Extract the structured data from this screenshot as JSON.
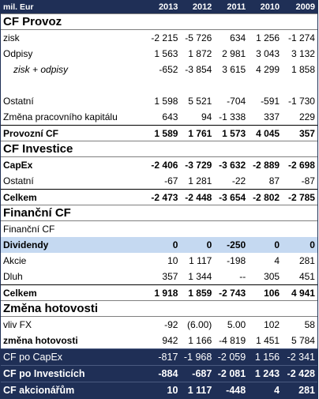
{
  "header": {
    "label": "mil. Eur",
    "years": [
      "2013",
      "2012",
      "2011",
      "2010",
      "2009"
    ]
  },
  "sections": [
    {
      "title": "CF Provoz",
      "rows": [
        {
          "label": "zisk",
          "values": [
            "-2 215",
            "-5 726",
            "634",
            "1 256",
            "-1 274"
          ],
          "style": "normal"
        },
        {
          "label": "Odpisy",
          "values": [
            "1 563",
            "1 872",
            "2 981",
            "3 043",
            "3 132"
          ],
          "style": "normal"
        },
        {
          "label": "zisk + odpisy",
          "values": [
            "-652",
            "-3 854",
            "3 615",
            "4 299",
            "1 858"
          ],
          "style": "italic"
        },
        {
          "label": "",
          "values": [
            "",
            "",
            "",
            "",
            ""
          ],
          "style": "blank"
        },
        {
          "label": "Ostatní",
          "values": [
            "1 598",
            "5 521",
            "-704",
            "-591",
            "-1 730"
          ],
          "style": "normal"
        },
        {
          "label": "Změna pracovního kapitálu",
          "values": [
            "643",
            "94",
            "-1 338",
            "337",
            "229"
          ],
          "style": "normal"
        },
        {
          "label": "Provozní CF",
          "values": [
            "1 589",
            "1 761",
            "1 573",
            "4 045",
            "357"
          ],
          "style": "total"
        }
      ]
    },
    {
      "title": "CF Investice",
      "rows": [
        {
          "label": "CapEx",
          "values": [
            "-2 406",
            "-3 729",
            "-3 632",
            "-2 889",
            "-2 698"
          ],
          "style": "bold"
        },
        {
          "label": "Ostatní",
          "values": [
            "-67",
            "1 281",
            "-22",
            "87",
            "-87"
          ],
          "style": "normal"
        },
        {
          "label": "Celkem",
          "values": [
            "-2 473",
            "-2 448",
            "-3 654",
            "-2 802",
            "-2 785"
          ],
          "style": "total"
        }
      ]
    },
    {
      "title": "Finanční CF",
      "rows": [
        {
          "label": "Finanční CF",
          "values": [
            "",
            "",
            "",
            "",
            ""
          ],
          "style": "normal"
        },
        {
          "label": "Dividendy",
          "values": [
            "0",
            "0",
            "-250",
            "0",
            "0"
          ],
          "style": "highlight"
        },
        {
          "label": "Akcie",
          "values": [
            "10",
            "1 117",
            "-198",
            "4",
            "281"
          ],
          "style": "normal"
        },
        {
          "label": "Dluh",
          "values": [
            "357",
            "1 344",
            "--",
            "305",
            "451"
          ],
          "style": "normal"
        },
        {
          "label": "Celkem",
          "values": [
            "1 918",
            "1 859",
            "-2 743",
            "106",
            "4 941"
          ],
          "style": "total"
        }
      ]
    },
    {
      "title": "Změna hotovosti",
      "rows": [
        {
          "label": "vliv FX",
          "values": [
            "-92",
            "(6.00)",
            "5.00",
            "102",
            "58"
          ],
          "style": "normal"
        },
        {
          "label": "změna hotovosti",
          "values": [
            "942",
            "1 166",
            "-4 819",
            "1 451",
            "5 784"
          ],
          "style": "boldlabel"
        }
      ]
    }
  ],
  "summary": [
    {
      "label": "CF po CapEx",
      "values": [
        "-817",
        "-1 968",
        "-2 059",
        "1 156",
        "-2 341"
      ],
      "bold": false
    },
    {
      "label": "CF po Investicích",
      "values": [
        "-884",
        "-687",
        "-2 081",
        "1 243",
        "-2 428"
      ],
      "bold": true
    },
    {
      "label": "CF akcionářům",
      "values": [
        "10",
        "1 117",
        "-448",
        "4",
        "281"
      ],
      "bold": true
    }
  ],
  "colors": {
    "header_bg": "#1f2f56",
    "highlight_bg": "#c5d9f1",
    "text": "#000000"
  }
}
